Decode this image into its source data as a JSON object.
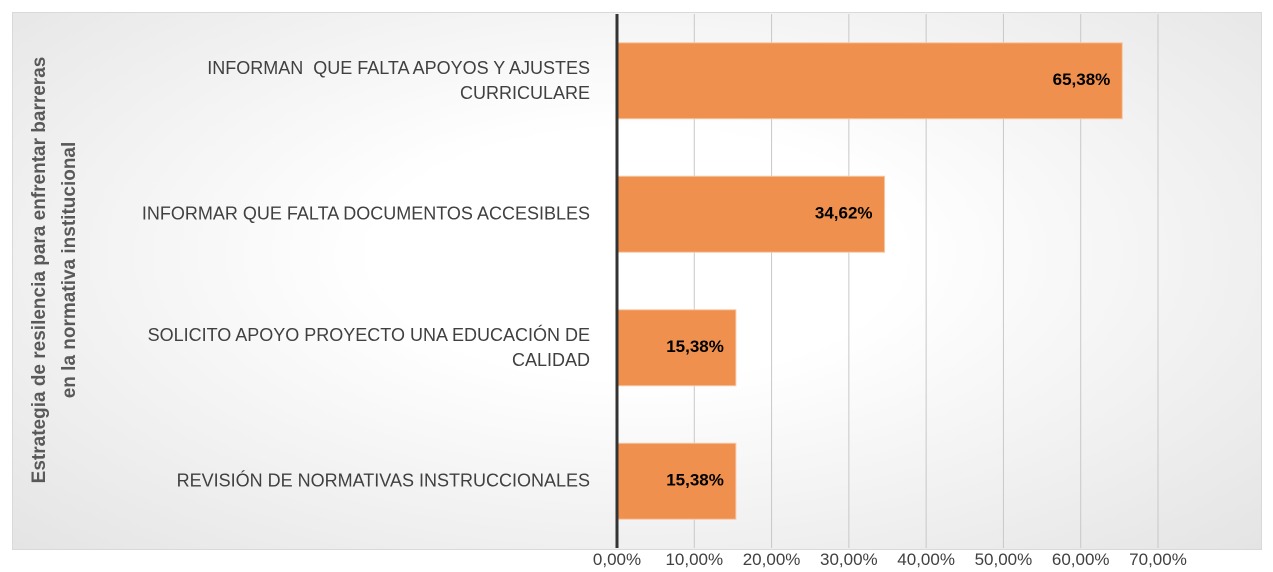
{
  "chart_data": {
    "type": "bar",
    "orientation": "horizontal",
    "y_label": "Estrategia de resilencia para enfrentar barreras en la normativa institucional",
    "categories": [
      "INFORMAN  QUE FALTA APOYOS Y AJUSTES CURRICULARE",
      "INFORMAR QUE FALTA DOCUMENTOS ACCESIBLES",
      "SOLICITO APOYO PROYECTO UNA EDUCACIÓN DE CALIDAD",
      "REVISIÓN DE NORMATIVAS INSTRUCCIONALES"
    ],
    "values": [
      65.38,
      34.62,
      15.38,
      15.38
    ],
    "value_labels": [
      "65,38%",
      "34,62%",
      "15,38%",
      "15,38%"
    ],
    "color": "#f0904e",
    "xlim": [
      0,
      70
    ],
    "xticks": [
      {
        "value": 0,
        "label": "0,00%"
      },
      {
        "value": 10,
        "label": "10,00%"
      },
      {
        "value": 20,
        "label": "20,00%"
      },
      {
        "value": 30,
        "label": "30,00%"
      },
      {
        "value": 40,
        "label": "40,00%"
      },
      {
        "value": 50,
        "label": "50,00%"
      },
      {
        "value": 60,
        "label": "60,00%"
      },
      {
        "value": 70,
        "label": "70,00%"
      }
    ],
    "grid": true
  }
}
